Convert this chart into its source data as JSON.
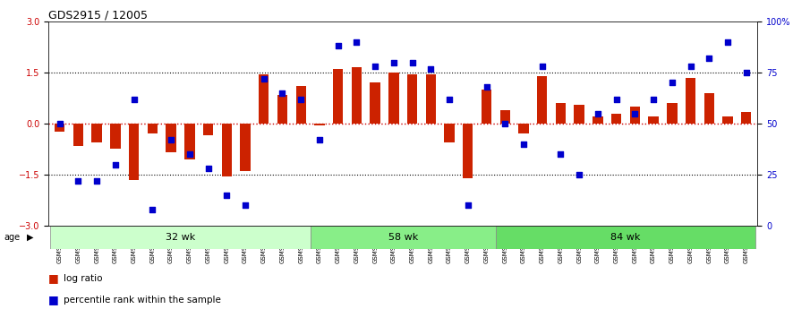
{
  "title": "GDS2915 / 12005",
  "samples": [
    "GSM97277",
    "GSM97278",
    "GSM97279",
    "GSM97280",
    "GSM97281",
    "GSM97282",
    "GSM97283",
    "GSM97284",
    "GSM97285",
    "GSM97286",
    "GSM97287",
    "GSM97288",
    "GSM97289",
    "GSM97290",
    "GSM97291",
    "GSM97292",
    "GSM97293",
    "GSM97294",
    "GSM97295",
    "GSM97296",
    "GSM97297",
    "GSM97298",
    "GSM97299",
    "GSM97300",
    "GSM97301",
    "GSM97302",
    "GSM97303",
    "GSM97304",
    "GSM97305",
    "GSM97306",
    "GSM97307",
    "GSM97308",
    "GSM97309",
    "GSM97310",
    "GSM97311",
    "GSM97312",
    "GSM97313",
    "GSM97314"
  ],
  "log_ratio": [
    -0.25,
    -0.65,
    -0.55,
    -0.75,
    -1.65,
    -0.3,
    -0.85,
    -1.05,
    -0.35,
    -1.55,
    -1.4,
    1.45,
    0.85,
    1.1,
    -0.05,
    1.6,
    1.65,
    1.2,
    1.5,
    1.45,
    1.45,
    -0.55,
    -1.6,
    1.0,
    0.4,
    -0.3,
    1.4,
    0.6,
    0.55,
    0.2,
    0.3,
    0.5,
    0.2,
    0.6,
    1.35,
    0.9,
    0.2,
    0.35
  ],
  "percentile": [
    50,
    22,
    22,
    30,
    62,
    8,
    42,
    35,
    28,
    15,
    10,
    72,
    65,
    62,
    42,
    88,
    90,
    78,
    80,
    80,
    77,
    62,
    10,
    68,
    50,
    40,
    78,
    35,
    25,
    55,
    62,
    55,
    62,
    70,
    78,
    82,
    90,
    75
  ],
  "groups": [
    {
      "label": "32 wk",
      "start": 0,
      "end": 14,
      "color": "#ccffcc"
    },
    {
      "label": "58 wk",
      "start": 14,
      "end": 24,
      "color": "#88ee88"
    },
    {
      "label": "84 wk",
      "start": 24,
      "end": 38,
      "color": "#66dd66"
    }
  ],
  "ylim": [
    -3,
    3
  ],
  "yticks_left": [
    -3,
    -1.5,
    0,
    1.5,
    3
  ],
  "yticks_right": [
    0,
    25,
    50,
    75,
    100
  ],
  "dotted_lines": [
    -1.5,
    1.5
  ],
  "zero_line_color": "#cc0000",
  "bar_color": "#cc2200",
  "dot_color": "#0000cc",
  "background_color": "#ffffff",
  "legend_log": "log ratio",
  "legend_pct": "percentile rank within the sample"
}
